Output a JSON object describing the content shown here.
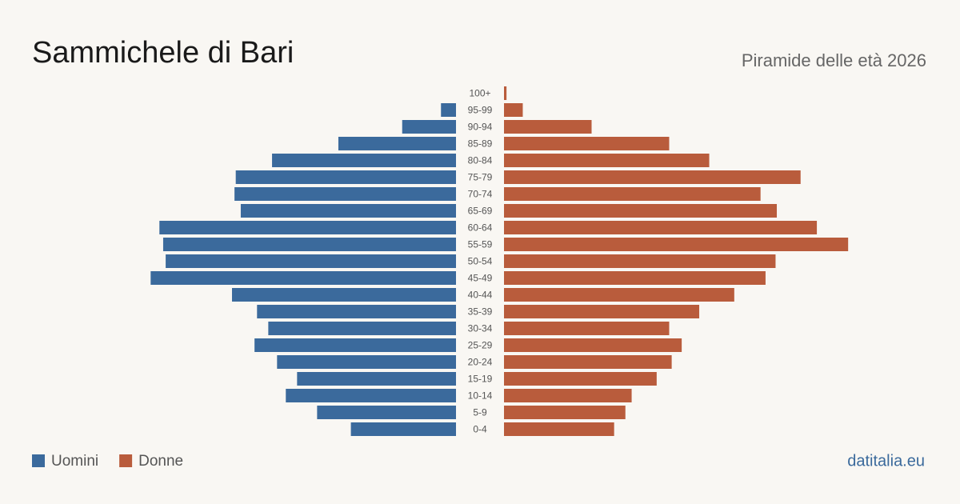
{
  "chart_data": {
    "type": "pyramid",
    "title": "Sammichele di Bari",
    "subtitle": "Piramide delle età 2026",
    "source": "datitalia.eu",
    "categories": [
      "100+",
      "95-99",
      "90-94",
      "85-89",
      "80-84",
      "75-79",
      "70-74",
      "65-69",
      "60-64",
      "55-59",
      "50-54",
      "45-49",
      "40-44",
      "35-39",
      "30-34",
      "25-29",
      "20-24",
      "15-19",
      "10-14",
      "5-9",
      "0-4"
    ],
    "series": [
      {
        "name": "Uomini",
        "color": "#3b6a9c",
        "values": [
          0,
          12,
          43,
          94,
          147,
          176,
          177,
          172,
          237,
          234,
          232,
          244,
          179,
          159,
          150,
          161,
          143,
          127,
          136,
          111,
          84
        ]
      },
      {
        "name": "Donne",
        "color": "#b95c3c",
        "values": [
          2,
          15,
          70,
          132,
          164,
          237,
          205,
          218,
          250,
          275,
          217,
          209,
          184,
          156,
          132,
          142,
          134,
          122,
          102,
          97,
          88
        ]
      }
    ],
    "xlim": [
      0,
      280
    ]
  }
}
